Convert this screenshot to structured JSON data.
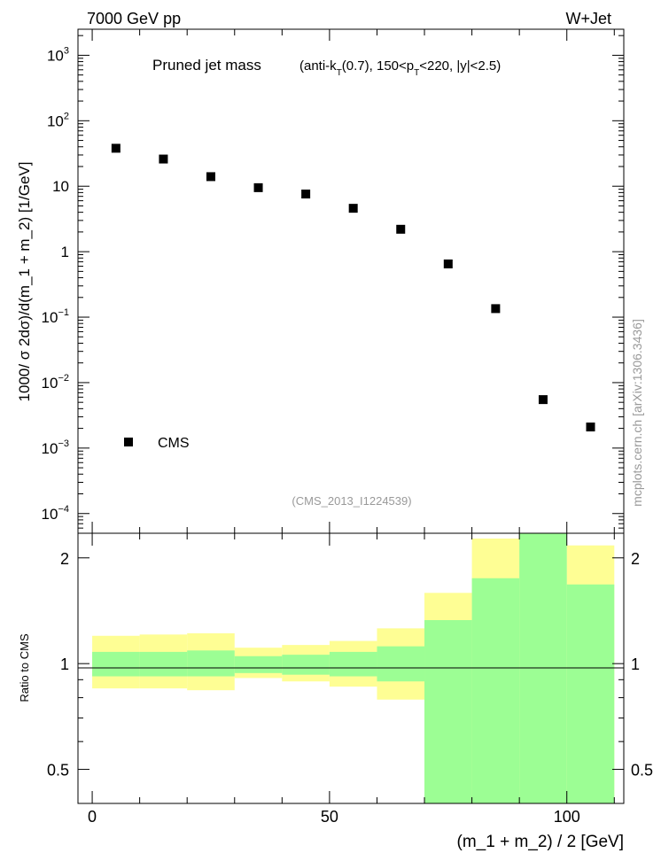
{
  "header": {
    "left": "7000 GeV pp",
    "right": "W+Jet"
  },
  "watermark": "mcplots.cern.ch [arXiv:1306.3436]",
  "chart_data": [
    {
      "type": "scatter",
      "title": "Pruned jet mass",
      "cuts": {
        "prefix": "(anti-k",
        "k_sub": "T",
        "mid": "(0.7), 150<p",
        "p_sub": "T",
        "suffix": "<220, |y|<2.5)"
      },
      "analysis_id": "(CMS_2013_I1224539)",
      "ylabel": "1000/ σ 2dσ)/d(m_1 + m_2) [1/GeV]",
      "yscale": "log",
      "ylim": [
        5e-05,
        2500
      ],
      "xlim": [
        -3,
        112
      ],
      "yticks": [
        {
          "value": 1000,
          "base": "10",
          "exp": "3"
        },
        {
          "value": 100,
          "base": "10",
          "exp": "2"
        },
        {
          "value": 10,
          "base": "10",
          "exp": ""
        },
        {
          "value": 1,
          "base": "1",
          "exp": ""
        },
        {
          "value": 0.1,
          "base": "10",
          "exp": "−1"
        },
        {
          "value": 0.01,
          "base": "10",
          "exp": "−2"
        },
        {
          "value": 0.001,
          "base": "10",
          "exp": "−3"
        },
        {
          "value": 0.0001,
          "base": "10",
          "exp": "−4"
        }
      ],
      "legend": {
        "label": "CMS",
        "position": "bottom-left"
      },
      "series": [
        {
          "name": "CMS",
          "color": "#000000",
          "x": [
            5,
            15,
            25,
            35,
            45,
            55,
            65,
            75,
            85,
            95,
            105
          ],
          "y": [
            38,
            26,
            14,
            9.5,
            7.6,
            4.6,
            2.2,
            0.65,
            0.135,
            0.0055,
            0.0021
          ]
        }
      ]
    },
    {
      "type": "area",
      "ylabel": "Ratio to CMS",
      "xlabel": "(m_1 + m_2) / 2 [GeV]",
      "xlim": [
        -3,
        112
      ],
      "ylim": [
        0.4,
        2.35
      ],
      "ylog": true,
      "xticks": [
        "0",
        "50",
        "100"
      ],
      "yticks": [
        "0.5",
        "1",
        "2"
      ],
      "reference_line": 1,
      "bins": [
        0,
        10,
        20,
        30,
        40,
        50,
        60,
        70,
        80,
        90,
        100,
        110
      ],
      "inner_band": {
        "color": "#9cfe94",
        "low": [
          0.92,
          0.92,
          0.92,
          0.94,
          0.93,
          0.92,
          0.89,
          0.33,
          0.33,
          0.33,
          0.33
        ],
        "high": [
          1.08,
          1.08,
          1.09,
          1.05,
          1.06,
          1.08,
          1.12,
          1.33,
          1.75,
          2.35,
          1.68
        ]
      },
      "outer_band": {
        "color": "#fefe94",
        "low": [
          0.85,
          0.85,
          0.84,
          0.91,
          0.89,
          0.86,
          0.79,
          0.44,
          0.33,
          0.33,
          0.33
        ],
        "high": [
          1.2,
          1.21,
          1.22,
          1.11,
          1.13,
          1.16,
          1.26,
          1.59,
          2.27,
          2.35,
          2.17
        ]
      }
    }
  ]
}
